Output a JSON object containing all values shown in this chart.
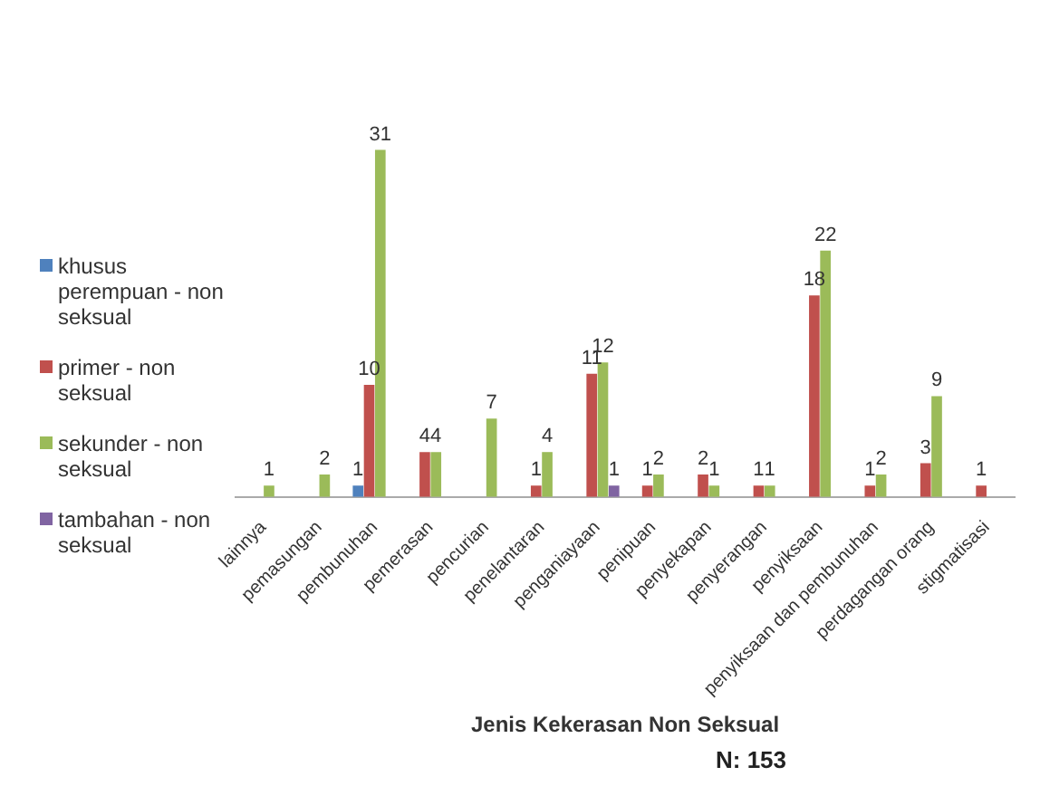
{
  "chart_data": {
    "type": "bar",
    "xlabel": "Jenis Kekerasan Non Seksual",
    "annotations": [
      "N: 153"
    ],
    "categories": [
      "lainnya",
      "pemasungan",
      "pembunuhan",
      "pemerasan",
      "pencurian",
      "penelantaran",
      "penganiayaan",
      "penipuan",
      "penyekapan",
      "penyerangan",
      "penyiksaan",
      "penyiksaan dan pembunuhan",
      "perdagangan orang",
      "stigmatisasi"
    ],
    "series": [
      {
        "name": "khusus perempuan - non seksual",
        "color": "#4f81bd",
        "values": [
          null,
          null,
          1,
          null,
          null,
          null,
          null,
          null,
          null,
          null,
          null,
          null,
          null,
          null
        ]
      },
      {
        "name": "primer - non seksual",
        "color": "#c0504d",
        "values": [
          null,
          null,
          10,
          4,
          null,
          1,
          11,
          1,
          2,
          1,
          18,
          1,
          3,
          1
        ]
      },
      {
        "name": "sekunder - non seksual",
        "color": "#9bbb59",
        "values": [
          1,
          2,
          31,
          4,
          7,
          4,
          12,
          2,
          1,
          1,
          22,
          2,
          9,
          null
        ]
      },
      {
        "name": "tambahan - non seksual",
        "color": "#8064a2",
        "values": [
          null,
          null,
          null,
          null,
          null,
          null,
          1,
          null,
          null,
          null,
          null,
          null,
          null,
          null
        ]
      }
    ],
    "data_labels": true,
    "legend": "left",
    "grid": false
  }
}
